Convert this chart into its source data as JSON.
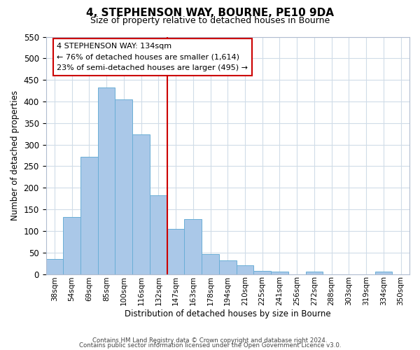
{
  "title": "4, STEPHENSON WAY, BOURNE, PE10 9DA",
  "subtitle": "Size of property relative to detached houses in Bourne",
  "xlabel": "Distribution of detached houses by size in Bourne",
  "ylabel": "Number of detached properties",
  "bar_labels": [
    "38sqm",
    "54sqm",
    "69sqm",
    "85sqm",
    "100sqm",
    "116sqm",
    "132sqm",
    "147sqm",
    "163sqm",
    "178sqm",
    "194sqm",
    "210sqm",
    "225sqm",
    "241sqm",
    "256sqm",
    "272sqm",
    "288sqm",
    "303sqm",
    "319sqm",
    "334sqm",
    "350sqm"
  ],
  "bar_heights": [
    35,
    133,
    272,
    432,
    405,
    323,
    183,
    105,
    127,
    46,
    31,
    20,
    8,
    5,
    0,
    5,
    0,
    0,
    0,
    5,
    0
  ],
  "bar_color": "#aac8e8",
  "bar_edge_color": "#6aaed6",
  "vline_color": "#cc0000",
  "vline_label_index": 6,
  "ylim": [
    0,
    550
  ],
  "yticks": [
    0,
    50,
    100,
    150,
    200,
    250,
    300,
    350,
    400,
    450,
    500,
    550
  ],
  "annotation_title": "4 STEPHENSON WAY: 134sqm",
  "annotation_line1": "← 76% of detached houses are smaller (1,614)",
  "annotation_line2": "23% of semi-detached houses are larger (495) →",
  "annotation_box_color": "#ffffff",
  "annotation_box_edge": "#cc0000",
  "footer_line1": "Contains HM Land Registry data © Crown copyright and database right 2024.",
  "footer_line2": "Contains public sector information licensed under the Open Government Licence v3.0.",
  "background_color": "#ffffff",
  "grid_color": "#d0dce8"
}
